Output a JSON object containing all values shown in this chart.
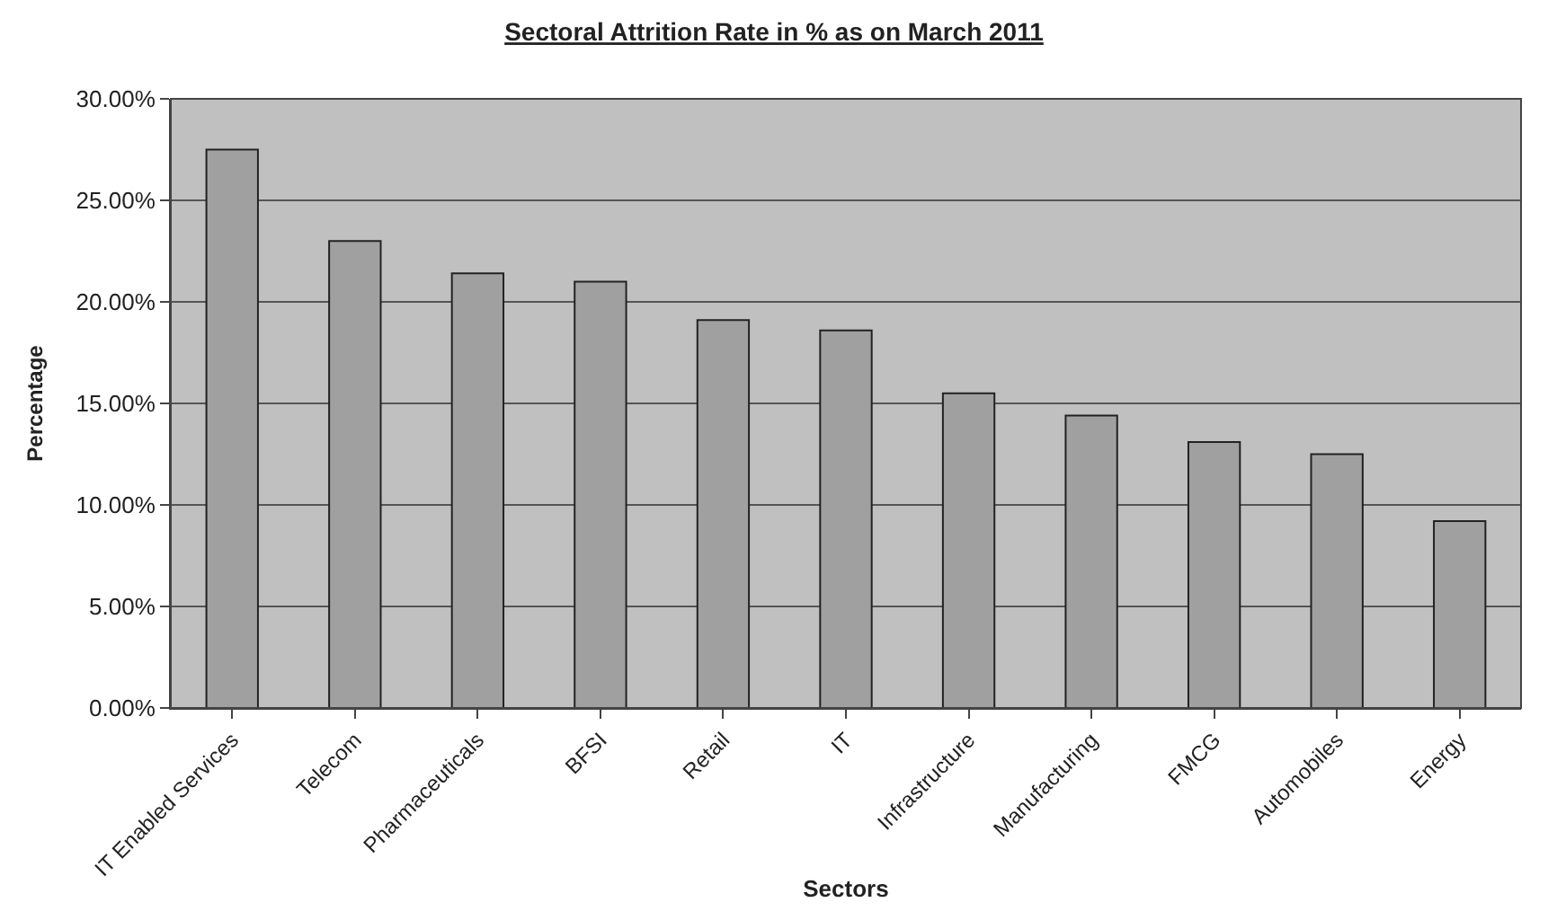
{
  "chart_data": {
    "type": "bar",
    "title": "Sectoral Attrition Rate in % as on March 2011",
    "xlabel": "Sectors",
    "ylabel": "Percentage",
    "categories": [
      "IT Enabled Services",
      "Telecom",
      "Pharmaceuticals",
      "BFSI",
      "Retail",
      "IT",
      "Infrastructure",
      "Manufacturing",
      "FMCG",
      "Automobiles",
      "Energy"
    ],
    "values": [
      27.5,
      23.0,
      21.4,
      21.0,
      19.1,
      18.6,
      15.5,
      14.4,
      13.1,
      12.5,
      9.2
    ],
    "color": "#a0a0a0",
    "ylim": [
      0,
      30
    ],
    "yticks": [
      {
        "value": 0,
        "label": "0.00%"
      },
      {
        "value": 5,
        "label": "5.00%"
      },
      {
        "value": 10,
        "label": "10.00%"
      },
      {
        "value": 15,
        "label": "15.00%"
      },
      {
        "value": 20,
        "label": "20.00%"
      },
      {
        "value": 25,
        "label": "25.00%"
      },
      {
        "value": 30,
        "label": "30.00%"
      }
    ],
    "grid": "y"
  }
}
